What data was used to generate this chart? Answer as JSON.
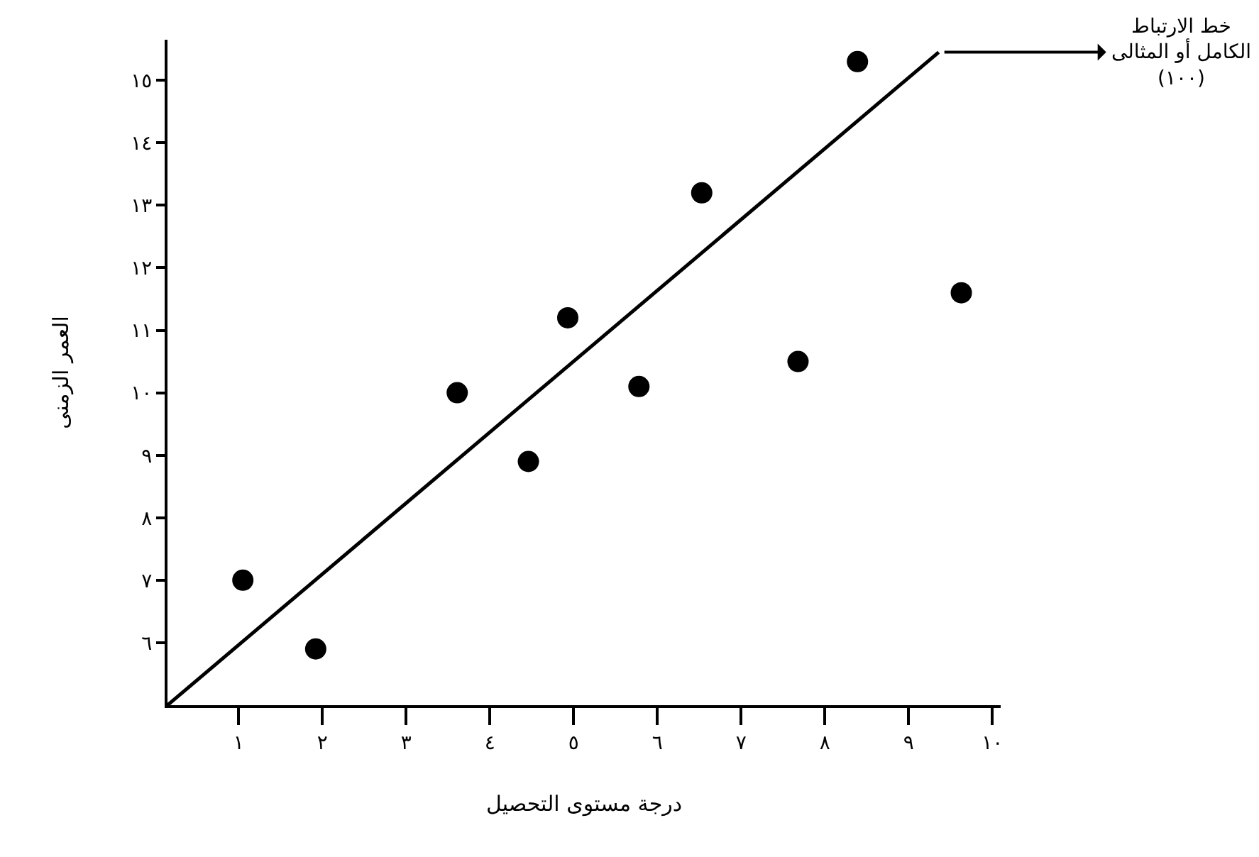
{
  "chart_data": {
    "type": "scatter",
    "xlabel": "درجة مستوى التحصيل",
    "ylabel": "العمر الزمنى",
    "xlim": [
      0.15,
      10.1
    ],
    "ylim": [
      5,
      15.65
    ],
    "xticks": [
      {
        "value": 1,
        "label": "١"
      },
      {
        "value": 2,
        "label": "٢"
      },
      {
        "value": 3,
        "label": "٣"
      },
      {
        "value": 4,
        "label": "٤"
      },
      {
        "value": 5,
        "label": "٥"
      },
      {
        "value": 6,
        "label": "٦"
      },
      {
        "value": 7,
        "label": "٧"
      },
      {
        "value": 8,
        "label": "٨"
      },
      {
        "value": 9,
        "label": "٩"
      },
      {
        "value": 10,
        "label": "١٠"
      }
    ],
    "yticks": [
      {
        "value": 6,
        "label": "٦"
      },
      {
        "value": 7,
        "label": "٧"
      },
      {
        "value": 8,
        "label": "٨"
      },
      {
        "value": 9,
        "label": "٩"
      },
      {
        "value": 10,
        "label": "١٠"
      },
      {
        "value": 11,
        "label": "١١"
      },
      {
        "value": 12,
        "label": "١٢"
      },
      {
        "value": 13,
        "label": "١٣"
      },
      {
        "value": 14,
        "label": "١٤"
      },
      {
        "value": 15,
        "label": "١٥"
      }
    ],
    "marker": "circle",
    "series": [
      {
        "color": "#000000",
        "x": [
          1.05,
          1.92,
          3.61,
          4.46,
          4.93,
          5.78,
          6.53,
          7.68,
          8.39,
          9.63
        ],
        "values": [
          7.0,
          5.9,
          10.0,
          8.9,
          11.2,
          10.1,
          13.2,
          10.5,
          15.3,
          11.6
        ]
      },
      {
        "type": "line",
        "color": "#000000",
        "x": [
          0.15,
          9.36
        ],
        "values": [
          5.0,
          15.45
        ],
        "marker": "none"
      }
    ],
    "annotations": [
      {
        "text": "خط الارتباط\nالكامل أو المثالى\n(١٠٠)",
        "x": 9.36,
        "y": 15.45
      }
    ]
  }
}
